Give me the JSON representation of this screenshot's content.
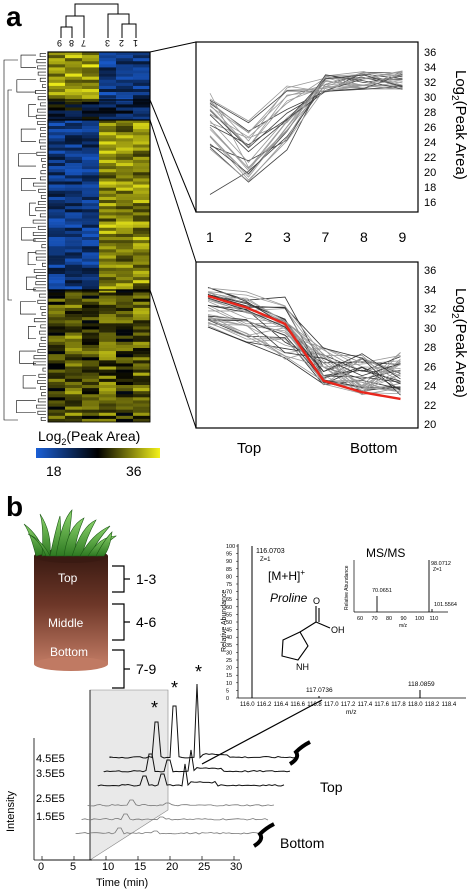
{
  "panel_a": {
    "label": "a",
    "heatmap": {
      "col_labels": [
        "9",
        "8",
        "7",
        "3",
        "2",
        "1"
      ],
      "colorbar": {
        "title": "Log",
        "title_sub": "2",
        "title_tail": "(Peak Area)",
        "min_label": "18",
        "max_label": "36",
        "min": 18,
        "max": 36
      },
      "colors": {
        "low": "#1a5fd6",
        "mid": "#000000",
        "high": "#f4f21a"
      }
    },
    "top_plot": {
      "x_ticks": [
        "1",
        "2",
        "3",
        "7",
        "8",
        "9"
      ],
      "y_ticks": [
        "36",
        "34",
        "32",
        "30",
        "28",
        "26",
        "24",
        "22",
        "20",
        "18",
        "16"
      ],
      "ylabel_main": "Log",
      "ylabel_sub": "2",
      "ylabel_tail": "(Peak Area)"
    },
    "bottom_plot": {
      "x_label_left": "Top",
      "x_label_right": "Bottom",
      "y_ticks": [
        "36",
        "34",
        "32",
        "30",
        "28",
        "26",
        "24",
        "22",
        "20"
      ],
      "ylabel_main": "Log",
      "ylabel_sub": "2",
      "ylabel_tail": "(Peak Area)",
      "highlight_color": "#e8261c"
    }
  },
  "panel_b": {
    "label": "b",
    "core": {
      "layers": [
        {
          "name": "Top",
          "range": "1-3"
        },
        {
          "name": "Middle",
          "range": "4-6"
        },
        {
          "name": "Bottom",
          "range": "7-9"
        }
      ]
    },
    "ms": {
      "title": "",
      "main_peak_label": "116.0703",
      "main_peak_z": "Z=1",
      "ion_label": "[M+H]",
      "ion_sup": "+",
      "compound": "Proline",
      "ylabel": "Relative Abundance",
      "xlabel": "m/z",
      "y_ticks": [
        "100",
        "95",
        "90",
        "85",
        "80",
        "75",
        "70",
        "65",
        "60",
        "55",
        "50",
        "45",
        "40",
        "35",
        "30",
        "25",
        "20",
        "15",
        "10",
        "5",
        "0"
      ],
      "x_ticks": [
        "116.0",
        "116.2",
        "116.4",
        "116.6",
        "116.8",
        "117.0",
        "117.2",
        "117.4",
        "117.6",
        "117.8",
        "118.0",
        "118.2",
        "118.4"
      ],
      "minor_peaks": [
        "117.0736",
        "118.0859"
      ],
      "structure_labels": {
        "nh": "NH",
        "oh": "OH",
        "o": "O"
      }
    },
    "msms": {
      "title": "MS/MS",
      "ylabel": "Relative Abundance",
      "xlabel": "m/z",
      "peaks": [
        "98.0712",
        "Z=1",
        "70.0651",
        "101.5564"
      ],
      "x_ticks": [
        "60",
        "70",
        "80",
        "90",
        "100",
        "110"
      ]
    },
    "chromatogram": {
      "ylabel": "Intensity",
      "xlabel": "Time (min)",
      "y_ticks": [
        "4.5E5",
        "3.5E5",
        "2.5E5",
        "1.5E5"
      ],
      "x_ticks": [
        "0",
        "5",
        "10",
        "15",
        "20",
        "25",
        "30"
      ],
      "group_top": "Top",
      "group_bottom": "Bottom",
      "star": "*"
    }
  }
}
